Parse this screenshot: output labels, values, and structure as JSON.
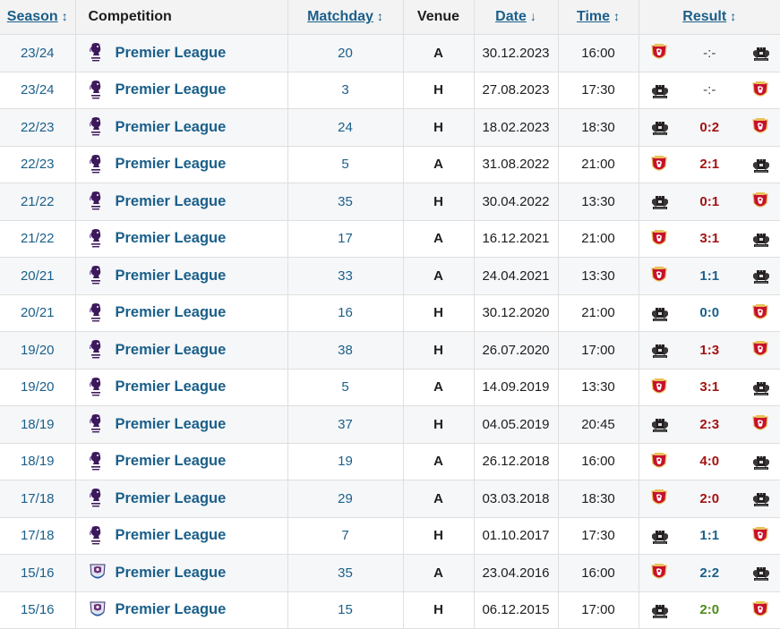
{
  "headers": {
    "season": "Season",
    "competition": "Competition",
    "matchday": "Matchday",
    "venue": "Venue",
    "date": "Date",
    "time": "Time",
    "result": "Result",
    "sort_both": "↕",
    "sort_down": "↓"
  },
  "colors": {
    "link": "#1a5f8a",
    "loss": "#a31212",
    "win": "#4d8c17",
    "liverpool_red": "#c8102e",
    "newcastle_black": "#241f20"
  },
  "rows": [
    {
      "season": "23/24",
      "competition": "Premier League",
      "logo": "premier-league-lion-icon",
      "matchday": "20",
      "venue": "A",
      "date": "30.12.2023",
      "time": "16:00",
      "home": "liverpool-crest-icon",
      "score": "-:-",
      "outcome": "tbd",
      "away": "newcastle-crest-icon"
    },
    {
      "season": "23/24",
      "competition": "Premier League",
      "logo": "premier-league-lion-icon",
      "matchday": "3",
      "venue": "H",
      "date": "27.08.2023",
      "time": "17:30",
      "home": "newcastle-crest-icon",
      "score": "-:-",
      "outcome": "tbd",
      "away": "liverpool-crest-icon"
    },
    {
      "season": "22/23",
      "competition": "Premier League",
      "logo": "premier-league-lion-icon",
      "matchday": "24",
      "venue": "H",
      "date": "18.02.2023",
      "time": "18:30",
      "home": "newcastle-crest-icon",
      "score": "0:2",
      "outcome": "loss",
      "away": "liverpool-crest-icon"
    },
    {
      "season": "22/23",
      "competition": "Premier League",
      "logo": "premier-league-lion-icon",
      "matchday": "5",
      "venue": "A",
      "date": "31.08.2022",
      "time": "21:00",
      "home": "liverpool-crest-icon",
      "score": "2:1",
      "outcome": "loss",
      "away": "newcastle-crest-icon"
    },
    {
      "season": "21/22",
      "competition": "Premier League",
      "logo": "premier-league-lion-icon",
      "matchday": "35",
      "venue": "H",
      "date": "30.04.2022",
      "time": "13:30",
      "home": "newcastle-crest-icon",
      "score": "0:1",
      "outcome": "loss",
      "away": "liverpool-crest-icon"
    },
    {
      "season": "21/22",
      "competition": "Premier League",
      "logo": "premier-league-lion-icon",
      "matchday": "17",
      "venue": "A",
      "date": "16.12.2021",
      "time": "21:00",
      "home": "liverpool-crest-icon",
      "score": "3:1",
      "outcome": "loss",
      "away": "newcastle-crest-icon"
    },
    {
      "season": "20/21",
      "competition": "Premier League",
      "logo": "premier-league-lion-icon",
      "matchday": "33",
      "venue": "A",
      "date": "24.04.2021",
      "time": "13:30",
      "home": "liverpool-crest-icon",
      "score": "1:1",
      "outcome": "draw",
      "away": "newcastle-crest-icon"
    },
    {
      "season": "20/21",
      "competition": "Premier League",
      "logo": "premier-league-lion-icon",
      "matchday": "16",
      "venue": "H",
      "date": "30.12.2020",
      "time": "21:00",
      "home": "newcastle-crest-icon",
      "score": "0:0",
      "outcome": "draw",
      "away": "liverpool-crest-icon"
    },
    {
      "season": "19/20",
      "competition": "Premier League",
      "logo": "premier-league-lion-icon",
      "matchday": "38",
      "venue": "H",
      "date": "26.07.2020",
      "time": "17:00",
      "home": "newcastle-crest-icon",
      "score": "1:3",
      "outcome": "loss",
      "away": "liverpool-crest-icon"
    },
    {
      "season": "19/20",
      "competition": "Premier League",
      "logo": "premier-league-lion-icon",
      "matchday": "5",
      "venue": "A",
      "date": "14.09.2019",
      "time": "13:30",
      "home": "liverpool-crest-icon",
      "score": "3:1",
      "outcome": "loss",
      "away": "newcastle-crest-icon"
    },
    {
      "season": "18/19",
      "competition": "Premier League",
      "logo": "premier-league-lion-icon",
      "matchday": "37",
      "venue": "H",
      "date": "04.05.2019",
      "time": "20:45",
      "home": "newcastle-crest-icon",
      "score": "2:3",
      "outcome": "loss",
      "away": "liverpool-crest-icon"
    },
    {
      "season": "18/19",
      "competition": "Premier League",
      "logo": "premier-league-lion-icon",
      "matchday": "19",
      "venue": "A",
      "date": "26.12.2018",
      "time": "16:00",
      "home": "liverpool-crest-icon",
      "score": "4:0",
      "outcome": "loss",
      "away": "newcastle-crest-icon"
    },
    {
      "season": "17/18",
      "competition": "Premier League",
      "logo": "premier-league-lion-icon",
      "matchday": "29",
      "venue": "A",
      "date": "03.03.2018",
      "time": "18:30",
      "home": "liverpool-crest-icon",
      "score": "2:0",
      "outcome": "loss",
      "away": "newcastle-crest-icon"
    },
    {
      "season": "17/18",
      "competition": "Premier League",
      "logo": "premier-league-lion-icon",
      "matchday": "7",
      "venue": "H",
      "date": "01.10.2017",
      "time": "17:30",
      "home": "newcastle-crest-icon",
      "score": "1:1",
      "outcome": "draw",
      "away": "liverpool-crest-icon"
    },
    {
      "season": "15/16",
      "competition": "Premier League",
      "logo": "premier-league-old-logo-icon",
      "matchday": "35",
      "venue": "A",
      "date": "23.04.2016",
      "time": "16:00",
      "home": "liverpool-crest-icon",
      "score": "2:2",
      "outcome": "draw",
      "away": "newcastle-crest-icon"
    },
    {
      "season": "15/16",
      "competition": "Premier League",
      "logo": "premier-league-old-logo-icon",
      "matchday": "15",
      "venue": "H",
      "date": "06.12.2015",
      "time": "17:00",
      "home": "newcastle-crest-icon",
      "score": "2:0",
      "outcome": "win",
      "away": "liverpool-crest-icon"
    }
  ]
}
